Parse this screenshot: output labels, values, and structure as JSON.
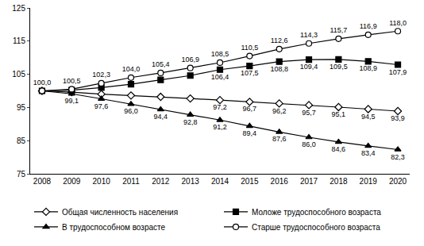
{
  "chart_data": {
    "type": "line",
    "categories": [
      "2008",
      "2009",
      "2010",
      "2011",
      "2012",
      "2013",
      "2014",
      "2015",
      "2016",
      "2017",
      "2018",
      "2019",
      "2020"
    ],
    "ylim": [
      75,
      125
    ],
    "yticks": [
      75,
      85,
      95,
      105,
      115,
      125
    ],
    "grid": false,
    "legend": "bottom",
    "data_labels": true,
    "series": [
      {
        "name": "Общая численность населения",
        "color": "#000000",
        "marker": "diamond-open",
        "values": [
          100.0,
          99.6,
          99.0,
          98.6,
          98.2,
          97.7,
          97.2,
          96.7,
          96.2,
          95.7,
          95.1,
          94.5,
          93.9
        ],
        "value_labels": [
          null,
          null,
          null,
          null,
          null,
          null,
          "97,2",
          "96,7",
          "96,2",
          "95,7",
          "95,1",
          "94,5",
          "93,9"
        ]
      },
      {
        "name": "Моложе трудоспособного возраста",
        "color": "#000000",
        "marker": "square",
        "values": [
          100.0,
          100.2,
          101.0,
          102.0,
          103.3,
          104.6,
          106.4,
          107.5,
          108.8,
          109.4,
          109.5,
          108.9,
          107.9
        ],
        "value_labels": [
          null,
          null,
          null,
          null,
          null,
          null,
          "106,4",
          "107,5",
          "108,8",
          "109,4",
          "109,5",
          "108,9",
          "107,9"
        ]
      },
      {
        "name": "В трудоспособном возрасте",
        "color": "#000000",
        "marker": "triangle",
        "values": [
          100.0,
          99.1,
          97.6,
          96.0,
          94.4,
          92.8,
          91.2,
          89.4,
          87.6,
          86.0,
          84.6,
          83.4,
          82.3
        ],
        "value_labels": [
          null,
          "99,1",
          "97,6",
          "96,0",
          "94,4",
          "92,8",
          "91,2",
          "89,4",
          "87,6",
          "86,0",
          "84,6",
          "83,4",
          "82,3"
        ]
      },
      {
        "name": "Старше трудоспособного возраста",
        "color": "#000000",
        "marker": "circle-open",
        "values": [
          100.0,
          100.5,
          102.3,
          104.0,
          105.4,
          106.9,
          108.5,
          110.5,
          112.6,
          114.3,
          115.7,
          116.9,
          118.0
        ],
        "value_labels": [
          "100,0",
          "100,5",
          "102,3",
          "104,0",
          "105,4",
          "106,9",
          "108,5",
          "110,5",
          "112,6",
          "114,3",
          "115,7",
          "116,9",
          "118,0"
        ]
      }
    ]
  }
}
